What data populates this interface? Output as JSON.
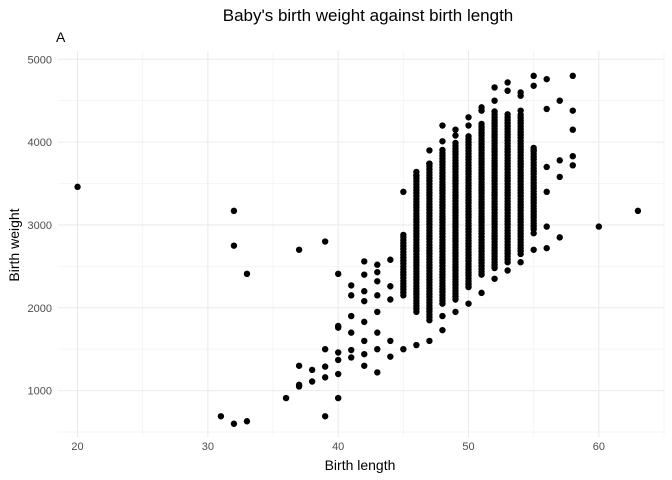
{
  "chart_data": {
    "type": "scatter",
    "title": "Baby's birth weight against birth length",
    "tag": "A",
    "xlabel": "Birth length",
    "ylabel": "Birth weight",
    "xlim": [
      18.5,
      65
    ],
    "ylim": [
      440,
      5100
    ],
    "xticks": [
      20,
      30,
      40,
      50,
      60
    ],
    "yticks": [
      1000,
      2000,
      3000,
      4000,
      5000
    ],
    "grid": true,
    "legend": "none",
    "point_color": "#000000",
    "points": [
      [
        20,
        3460
      ],
      [
        31,
        690
      ],
      [
        32,
        600
      ],
      [
        33,
        630
      ],
      [
        32,
        3170
      ],
      [
        32,
        2750
      ],
      [
        33,
        2410
      ],
      [
        36,
        910
      ],
      [
        37,
        1050
      ],
      [
        37,
        1070
      ],
      [
        37,
        1300
      ],
      [
        38,
        1110
      ],
      [
        38,
        1250
      ],
      [
        37,
        2700
      ],
      [
        39,
        2800
      ],
      [
        39,
        690
      ],
      [
        39,
        1160
      ],
      [
        39,
        1290
      ],
      [
        39,
        1500
      ],
      [
        40,
        910
      ],
      [
        40,
        1200
      ],
      [
        40,
        1370
      ],
      [
        40,
        1460
      ],
      [
        40,
        1760
      ],
      [
        40,
        1780
      ],
      [
        40,
        2410
      ],
      [
        41,
        1400
      ],
      [
        41,
        1490
      ],
      [
        41,
        1700
      ],
      [
        41,
        1900
      ],
      [
        41,
        2150
      ],
      [
        41,
        2270
      ],
      [
        42,
        1300
      ],
      [
        42,
        1440
      ],
      [
        42,
        1600
      ],
      [
        42,
        1830
      ],
      [
        42,
        2080
      ],
      [
        42,
        2200
      ],
      [
        42,
        2400
      ],
      [
        42,
        2560
      ],
      [
        43,
        1220
      ],
      [
        43,
        1500
      ],
      [
        43,
        1700
      ],
      [
        43,
        1950
      ],
      [
        43,
        2150
      ],
      [
        43,
        2320
      ],
      [
        43,
        2430
      ],
      [
        43,
        2520
      ],
      [
        44,
        1410
      ],
      [
        44,
        1600
      ],
      [
        44,
        2100
      ],
      [
        44,
        2260
      ],
      [
        44,
        2580
      ],
      [
        45,
        1500
      ],
      [
        45,
        2880
      ],
      [
        45,
        3400
      ],
      [
        46,
        1550
      ],
      [
        46,
        3600
      ],
      [
        46,
        3640
      ],
      [
        47,
        1600
      ],
      [
        47,
        3740
      ],
      [
        47,
        3900
      ],
      [
        48,
        1730
      ],
      [
        48,
        1900
      ],
      [
        48,
        4010
      ],
      [
        48,
        4200
      ],
      [
        49,
        1950
      ],
      [
        49,
        4080
      ],
      [
        49,
        4150
      ],
      [
        50,
        2050
      ],
      [
        50,
        4200
      ],
      [
        50,
        4300
      ],
      [
        51,
        2180
      ],
      [
        51,
        4380
      ],
      [
        51,
        4420
      ],
      [
        52,
        2350
      ],
      [
        52,
        4500
      ],
      [
        52,
        4660
      ],
      [
        53,
        2450
      ],
      [
        53,
        4720
      ],
      [
        53,
        4620
      ],
      [
        54,
        2550
      ],
      [
        54,
        4560
      ],
      [
        54,
        4600
      ],
      [
        54,
        4380
      ],
      [
        55,
        2700
      ],
      [
        55,
        4800
      ],
      [
        55,
        4680
      ],
      [
        55,
        3900
      ],
      [
        55,
        2900
      ],
      [
        56,
        4760
      ],
      [
        56,
        4400
      ],
      [
        56,
        3700
      ],
      [
        56,
        3400
      ],
      [
        56,
        2980
      ],
      [
        56,
        2720
      ],
      [
        57,
        4500
      ],
      [
        57,
        3780
      ],
      [
        57,
        3580
      ],
      [
        57,
        2850
      ],
      [
        58,
        4800
      ],
      [
        58,
        4380
      ],
      [
        58,
        4150
      ],
      [
        58,
        3830
      ],
      [
        58,
        3720
      ],
      [
        60,
        2980
      ],
      [
        63,
        3170
      ]
    ],
    "dense_columns": [
      {
        "x": 45,
        "y": [
          2150,
          2880
        ]
      },
      {
        "x": 46,
        "y": [
          1950,
          3600
        ]
      },
      {
        "x": 47,
        "y": [
          1850,
          3740
        ]
      },
      {
        "x": 48,
        "y": [
          2050,
          3930
        ]
      },
      {
        "x": 49,
        "y": [
          2100,
          4000
        ]
      },
      {
        "x": 50,
        "y": [
          2250,
          4100
        ]
      },
      {
        "x": 51,
        "y": [
          2400,
          4230
        ]
      },
      {
        "x": 52,
        "y": [
          2480,
          4380
        ]
      },
      {
        "x": 53,
        "y": [
          2550,
          4350
        ]
      },
      {
        "x": 54,
        "y": [
          2650,
          4330
        ]
      },
      {
        "x": 55,
        "y": [
          2950,
          3950
        ]
      }
    ]
  }
}
